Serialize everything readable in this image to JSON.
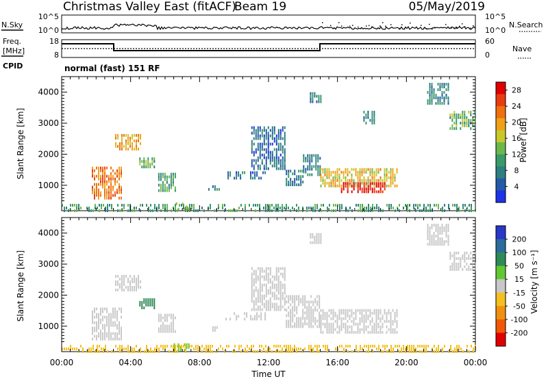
{
  "header": {
    "station": "Christmas Valley East (fitACF)",
    "beam": "Beam 19",
    "date": "05/May/2019"
  },
  "nsky_panel": {
    "left_label": "N.Sky",
    "right_label": "N.Search",
    "left_ticks": [
      "10^5",
      "10^0"
    ],
    "right_ticks": [
      "10^5",
      "10^0"
    ]
  },
  "freq_panel": {
    "left_label_top": "Freq.",
    "left_label_bottom": "[MHz]",
    "left_ticks": [
      "18",
      "8"
    ],
    "right_label": "Nave",
    "right_ticks": [
      "60",
      "0"
    ],
    "cpid_label": "CPID",
    "cpid_text": "normal (fast) 151 RF"
  },
  "chart_data": [
    {
      "type": "heatmap",
      "name": "power",
      "ylabel": "Slant Range [km]",
      "ylim": [
        180,
        4500
      ],
      "yticks": [
        1000,
        2000,
        3000,
        4000
      ],
      "xlim": [
        0,
        24
      ],
      "colorbar": {
        "label": "Power [dB]",
        "ticks": [
          "4",
          "8",
          "12",
          "16",
          "20",
          "24",
          "28"
        ],
        "range": [
          0,
          30
        ],
        "colors": [
          "#1e32e8",
          "#245aa8",
          "#2e7e82",
          "#3a9a6a",
          "#6cb84c",
          "#c8c82c",
          "#f0a018",
          "#f07010",
          "#e83c10",
          "#e00000"
        ]
      },
      "regions": [
        {
          "t0": 1.75,
          "t1": 3.5,
          "r0": 600,
          "r1": 1600,
          "v": 22
        },
        {
          "t0": 3.1,
          "t1": 4.6,
          "r0": 2150,
          "r1": 2650,
          "v": 20
        },
        {
          "t0": 4.5,
          "t1": 5.4,
          "r0": 1550,
          "r1": 1900,
          "v": 12
        },
        {
          "t0": 5.6,
          "t1": 6.6,
          "r0": 850,
          "r1": 1400,
          "v": 10
        },
        {
          "t0": 6.5,
          "t1": 7.4,
          "r0": 220,
          "r1": 450,
          "v": 16
        },
        {
          "t0": 8.5,
          "t1": 9.2,
          "r0": 900,
          "r1": 1000,
          "v": 8
        },
        {
          "t0": 9.5,
          "t1": 11.8,
          "r0": 1200,
          "r1": 1450,
          "v": 6
        },
        {
          "t0": 13.0,
          "t1": 14.0,
          "r0": 1000,
          "r1": 1500,
          "v": 8
        },
        {
          "t0": 14.0,
          "t1": 15.0,
          "r0": 1350,
          "r1": 2000,
          "v": 8
        },
        {
          "t0": 15.0,
          "t1": 19.5,
          "r0": 950,
          "r1": 1550,
          "v": 18
        },
        {
          "t0": 16.2,
          "t1": 18.8,
          "r0": 800,
          "r1": 1100,
          "v": 28
        },
        {
          "t0": 11.0,
          "t1": 13.0,
          "r0": 1500,
          "r1": 2900,
          "v": 6
        },
        {
          "t0": 14.4,
          "t1": 15.0,
          "r0": 3700,
          "r1": 4000,
          "v": 8
        },
        {
          "t0": 21.2,
          "t1": 22.5,
          "r0": 3600,
          "r1": 4300,
          "v": 8
        },
        {
          "t0": 22.5,
          "t1": 24.0,
          "r0": 2800,
          "r1": 3400,
          "v": 12
        },
        {
          "t0": 17.5,
          "t1": 18.2,
          "r0": 3000,
          "r1": 3400,
          "v": 8
        },
        {
          "t0": 0.0,
          "t1": 24.0,
          "r0": 180,
          "r1": 400,
          "v": 10
        }
      ]
    },
    {
      "type": "heatmap",
      "name": "velocity",
      "ylabel": "Slant Range [km]",
      "xlabel": "Time UT",
      "xticks": [
        "00:00",
        "04:00",
        "08:00",
        "12:00",
        "16:00",
        "20:00",
        "00:00"
      ],
      "xlim": [
        0,
        24
      ],
      "ylim": [
        180,
        4500
      ],
      "yticks": [
        1000,
        2000,
        3000,
        4000
      ],
      "colorbar": {
        "label": "Velocity [m s⁻¹]",
        "ticks": [
          "200",
          "100",
          "50",
          "15",
          "-15",
          "-50",
          "-100",
          "-200"
        ],
        "colors": [
          "#2838c8",
          "#2c6c9c",
          "#2e8a56",
          "#62c832",
          "#c8c8c8",
          "#f4c020",
          "#f09010",
          "#f05808",
          "#e00000"
        ]
      },
      "regions": [
        {
          "t0": 1.75,
          "t1": 3.5,
          "r0": 600,
          "r1": 1600,
          "v": 0
        },
        {
          "t0": 3.1,
          "t1": 4.6,
          "r0": 2150,
          "r1": 2650,
          "v": 0
        },
        {
          "t0": 4.5,
          "t1": 5.4,
          "r0": 1550,
          "r1": 1900,
          "v": 60
        },
        {
          "t0": 5.6,
          "t1": 6.6,
          "r0": 850,
          "r1": 1400,
          "v": 0
        },
        {
          "t0": 6.5,
          "t1": 7.4,
          "r0": 220,
          "r1": 450,
          "v": 40
        },
        {
          "t0": 8.5,
          "t1": 9.2,
          "r0": 900,
          "r1": 1000,
          "v": 0
        },
        {
          "t0": 9.5,
          "t1": 11.8,
          "r0": 1200,
          "r1": 1450,
          "v": 0
        },
        {
          "t0": 13.0,
          "t1": 15.0,
          "r0": 1000,
          "r1": 2000,
          "v": 0
        },
        {
          "t0": 15.0,
          "t1": 19.5,
          "r0": 800,
          "r1": 1550,
          "v": 0
        },
        {
          "t0": 11.0,
          "t1": 13.0,
          "r0": 1500,
          "r1": 2900,
          "v": 0
        },
        {
          "t0": 14.4,
          "t1": 15.0,
          "r0": 3700,
          "r1": 4000,
          "v": 0
        },
        {
          "t0": 21.2,
          "t1": 22.5,
          "r0": 3600,
          "r1": 4300,
          "v": 0
        },
        {
          "t0": 22.5,
          "t1": 24.0,
          "r0": 2800,
          "r1": 3400,
          "v": 0
        },
        {
          "t0": 0.0,
          "t1": 24.0,
          "r0": 180,
          "r1": 400,
          "v": -30
        }
      ]
    }
  ]
}
